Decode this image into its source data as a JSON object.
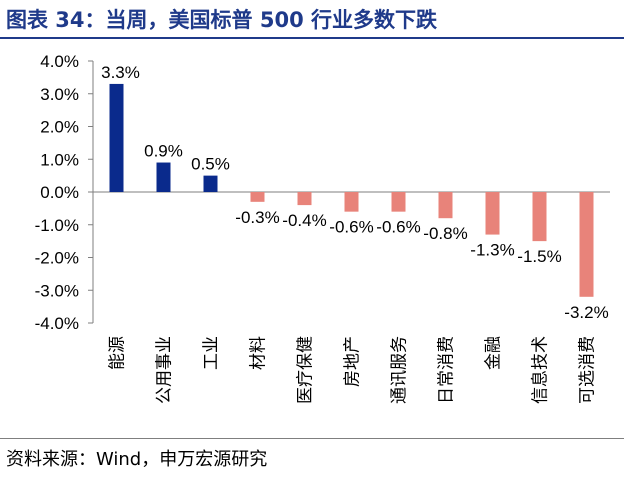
{
  "header": {
    "title": "图表 34：当周，美国标普 500 行业多数下跌"
  },
  "footer": {
    "source": "资料来源：Wind，申万宏源研究"
  },
  "chart_data": {
    "type": "bar",
    "categories": [
      "能源",
      "公用事业",
      "工业",
      "材料",
      "医疗保健",
      "房地产",
      "通讯服务",
      "日常消费",
      "金融",
      "信息技术",
      "可选消费"
    ],
    "values": [
      3.3,
      0.9,
      0.5,
      -0.3,
      -0.4,
      -0.6,
      -0.6,
      -0.8,
      -1.3,
      -1.5,
      -3.2
    ],
    "data_labels": [
      "3.3%",
      "0.9%",
      "0.5%",
      "-0.3%",
      "-0.4%",
      "-0.6%",
      "-0.6%",
      "-0.8%",
      "-1.3%",
      "-1.5%",
      "-3.2%"
    ],
    "ylim": [
      -4.0,
      4.0
    ],
    "yticks": [
      4.0,
      3.0,
      2.0,
      1.0,
      0.0,
      -1.0,
      -2.0,
      -3.0,
      -4.0
    ],
    "ytick_labels": [
      "4.0%",
      "3.0%",
      "2.0%",
      "1.0%",
      "0.0%",
      "-1.0%",
      "-2.0%",
      "-3.0%",
      "-4.0%"
    ],
    "colors": {
      "positive": "#0a2a8c",
      "negative": "#e8837a"
    },
    "grid": false,
    "legend": "none",
    "xlabel": "",
    "ylabel": ""
  }
}
